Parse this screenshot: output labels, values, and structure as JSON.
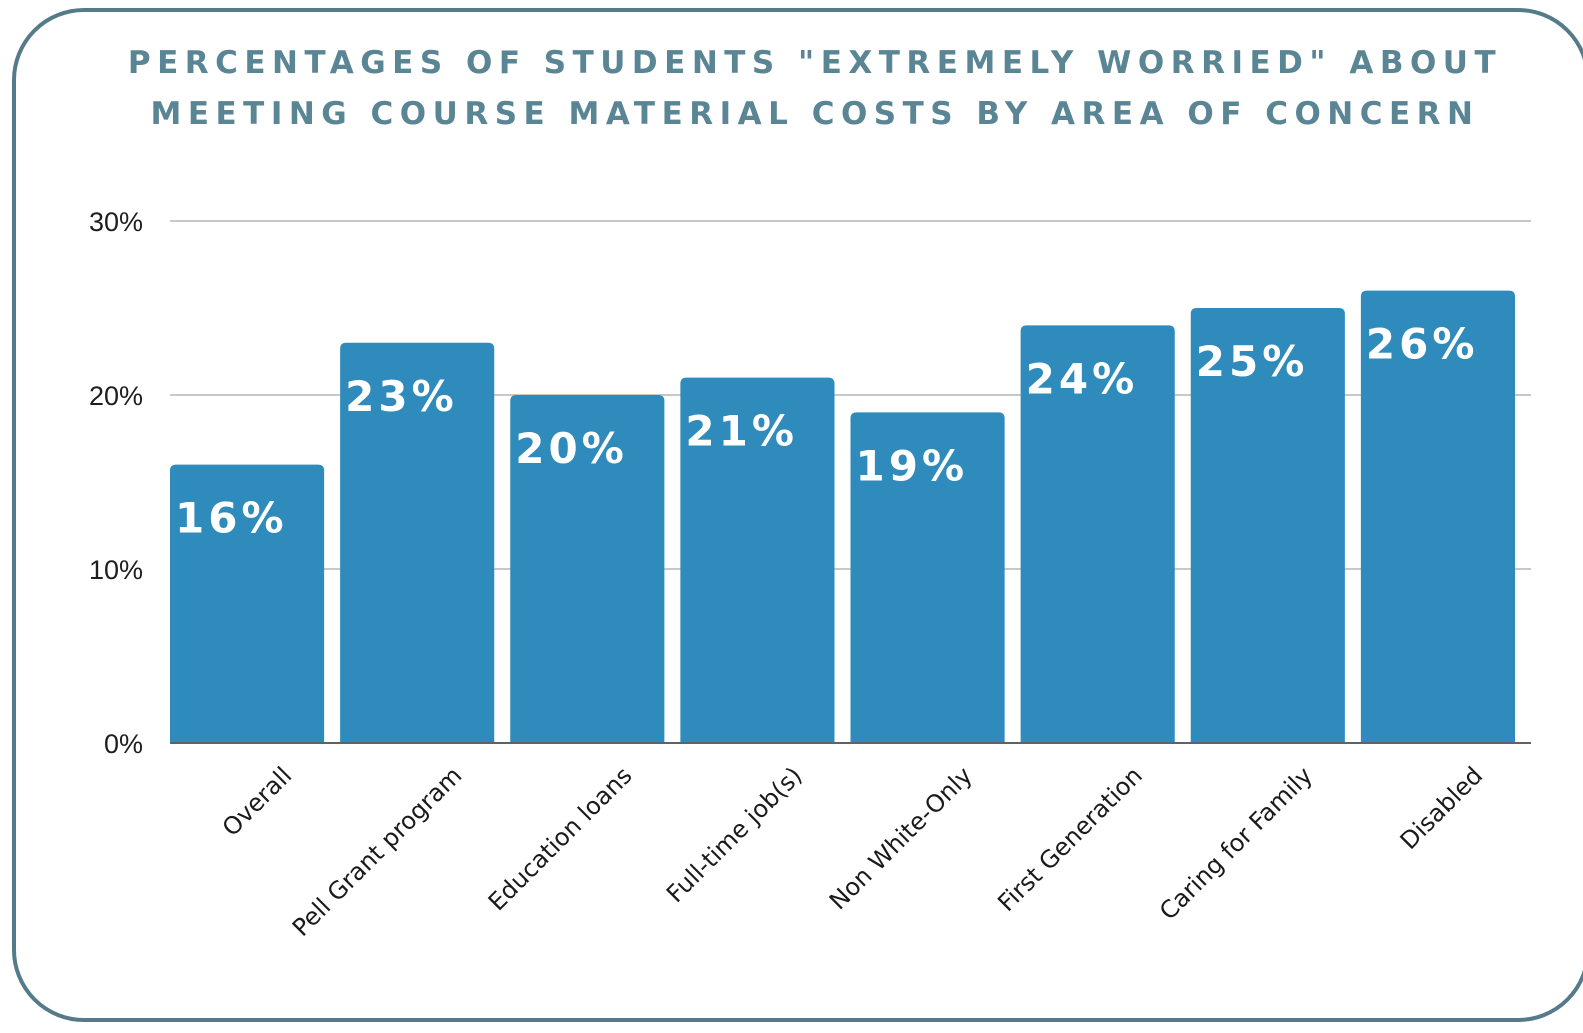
{
  "chart_data": {
    "type": "bar",
    "title": "PERCENTAGES OF STUDENTS \"EXTREMELY WORRIED\" ABOUT MEETING COURSE MATERIAL COSTS BY AREA OF CONCERN",
    "categories": [
      "Overall",
      "Pell Grant program",
      "Education loans",
      "Full-time job(s)",
      "Non White-Only",
      "First Generation",
      "Caring for Family",
      "Disabled"
    ],
    "values": [
      16,
      23,
      20,
      21,
      19,
      24,
      25,
      26
    ],
    "data_labels": [
      "16%",
      "23%",
      "20%",
      "21%",
      "19%",
      "24%",
      "25%",
      "26%"
    ],
    "yticks": [
      0,
      10,
      20,
      30
    ],
    "ytick_labels": [
      "0%",
      "10%",
      "20%",
      "30%"
    ],
    "ylim": [
      0,
      30
    ],
    "xlabel": "",
    "ylabel": "",
    "grid": true,
    "legend": "none",
    "colors": {
      "bar": "#2e8bbb",
      "border": "#557b8b",
      "title": "#5a8595",
      "grid": "#c8c8c8",
      "axis": "#5c6468"
    }
  }
}
